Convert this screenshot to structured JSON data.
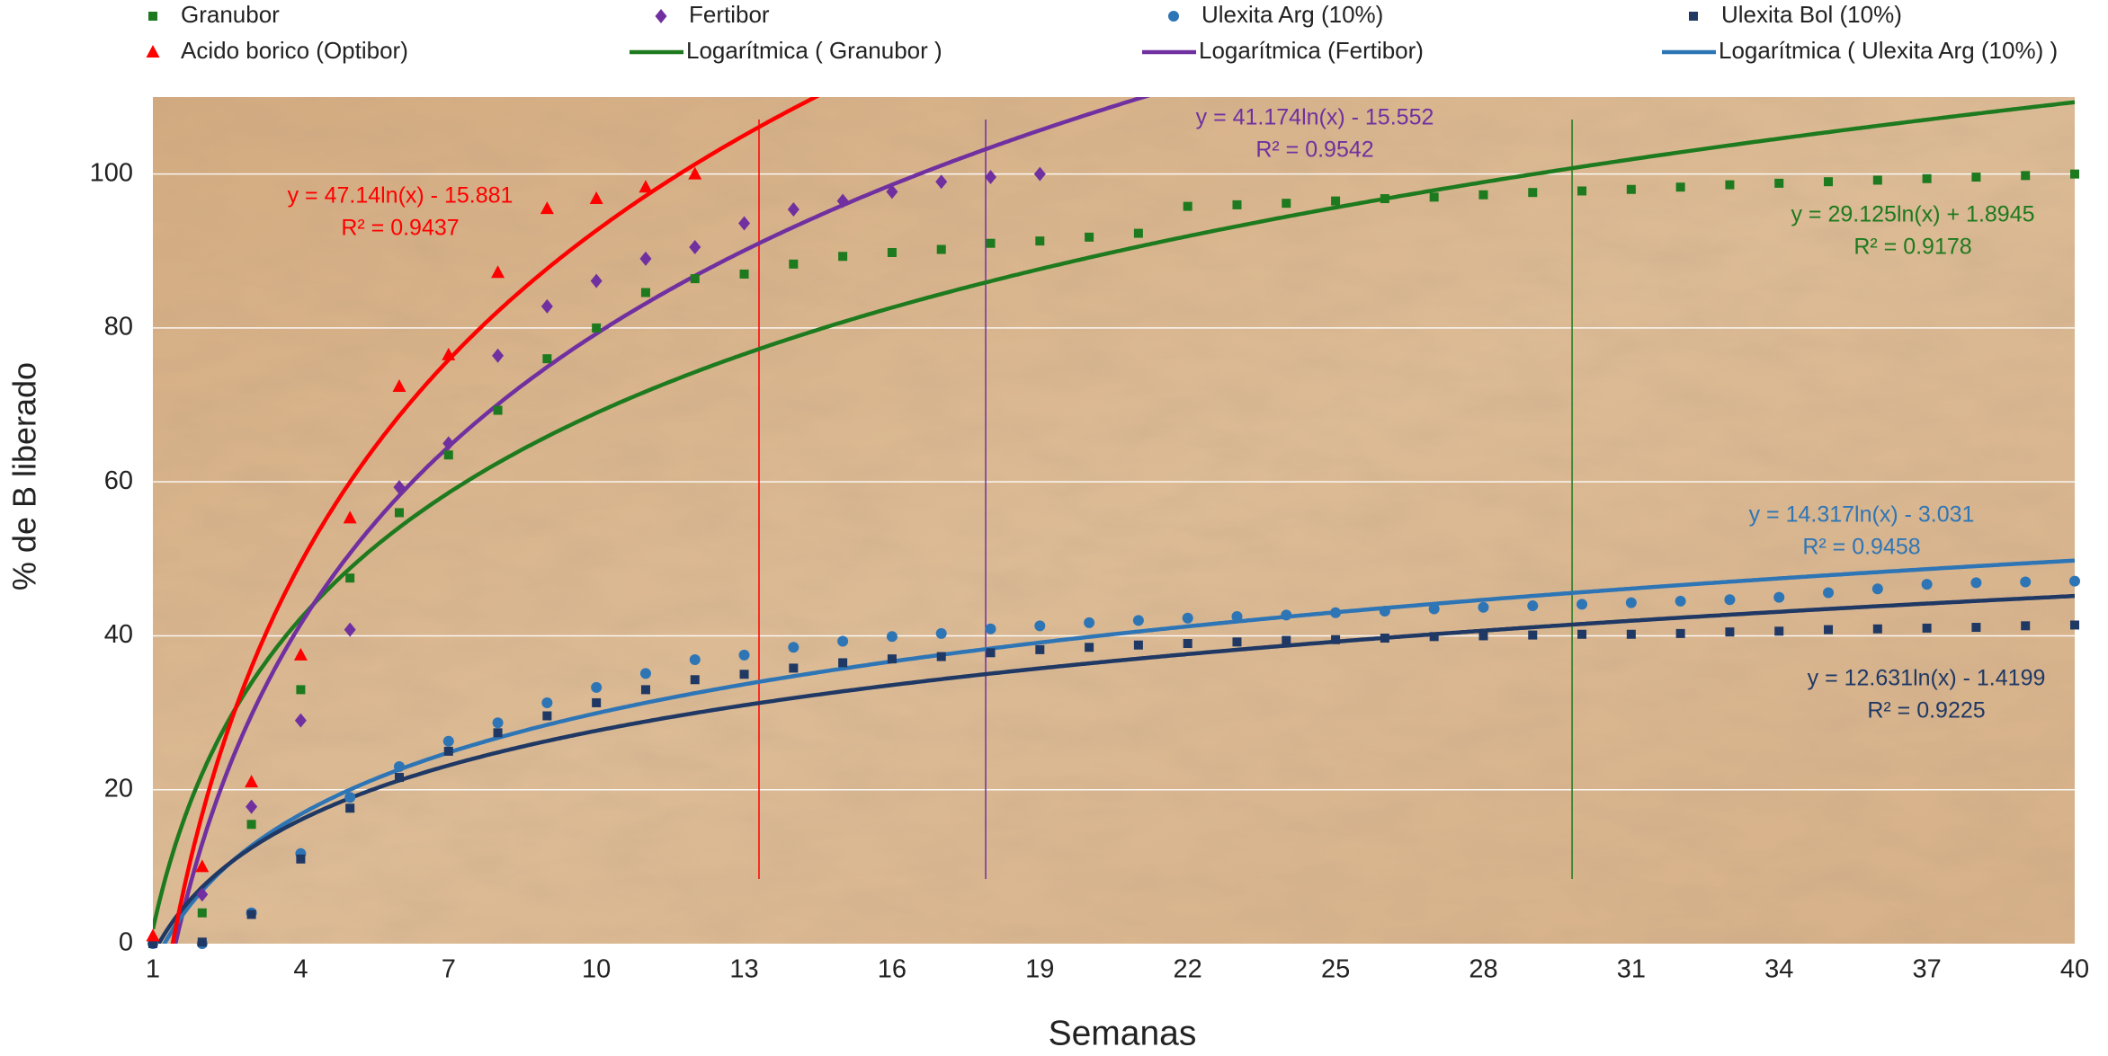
{
  "chart_data": {
    "type": "scatter",
    "x_label": "Semanas",
    "y_label": "% de B liberado",
    "xlim": [
      1,
      40
    ],
    "xticks": [
      1,
      4,
      7,
      10,
      13,
      16,
      19,
      22,
      25,
      28,
      31,
      34,
      37,
      40
    ],
    "ylim": [
      0,
      110
    ],
    "yticks": [
      0,
      20,
      40,
      60,
      80,
      100
    ],
    "grid": true,
    "series": [
      {
        "name": "Granubor",
        "color": "#1e7a1e",
        "marker": "square",
        "x": [
          1,
          2,
          3,
          4,
          5,
          6,
          7,
          8,
          9,
          10,
          11,
          12,
          13,
          14,
          15,
          16,
          17,
          18,
          19,
          20,
          21,
          22,
          23,
          24,
          25,
          26,
          27,
          28,
          29,
          30,
          31,
          32,
          33,
          34,
          35,
          36,
          37,
          38,
          39,
          40
        ],
        "values": [
          0,
          4,
          15.5,
          33,
          47.5,
          56,
          63.5,
          69.3,
          76,
          80,
          84.6,
          86.4,
          87,
          88.3,
          89.3,
          89.8,
          90.2,
          91,
          91.3,
          91.8,
          92.3,
          95.8,
          96,
          96.2,
          96.5,
          96.8,
          97,
          97.3,
          97.6,
          97.8,
          98,
          98.3,
          98.6,
          98.8,
          99,
          99.2,
          99.4,
          99.6,
          99.8,
          100
        ],
        "trendline": {
          "name": "Logarítmica ( Granubor )",
          "color": "#1e7a1e",
          "coef": [
            29.125,
            1.8945
          ],
          "equation": "y = 29.125ln(x) + 1.8945",
          "r2": "R² = 0.9178"
        }
      },
      {
        "name": "Fertibor",
        "color": "#7030a0",
        "marker": "diamond",
        "x": [
          1,
          2,
          3,
          4,
          5,
          6,
          7,
          8,
          9,
          10,
          11,
          12,
          13,
          14,
          15,
          16,
          17,
          18,
          19
        ],
        "values": [
          0.5,
          6.4,
          17.8,
          29,
          40.8,
          59.3,
          65,
          76.4,
          82.8,
          86.1,
          89,
          90.5,
          93.6,
          95.4,
          96.5,
          97.7,
          99,
          99.6,
          100
        ],
        "trendline": {
          "name": "Logarítmica (Fertibor)",
          "color": "#7030a0",
          "coef": [
            41.174,
            -15.552
          ],
          "equation": "y = 41.174ln(x) - 15.552",
          "r2": "R² = 0.9542"
        }
      },
      {
        "name": "Ulexita Arg (10%)",
        "color": "#2e75b6",
        "marker": "circle",
        "x": [
          1,
          2,
          3,
          4,
          5,
          6,
          7,
          8,
          9,
          10,
          11,
          12,
          13,
          14,
          15,
          16,
          17,
          18,
          19,
          20,
          21,
          22,
          23,
          24,
          25,
          26,
          27,
          28,
          29,
          30,
          31,
          32,
          33,
          34,
          35,
          36,
          37,
          38,
          39,
          40
        ],
        "values": [
          0,
          0,
          4,
          11.7,
          19,
          23,
          26.3,
          28.7,
          31.3,
          33.3,
          35.1,
          36.9,
          37.5,
          38.5,
          39.3,
          39.9,
          40.3,
          40.9,
          41.3,
          41.7,
          42,
          42.3,
          42.5,
          42.7,
          43,
          43.2,
          43.5,
          43.7,
          43.9,
          44.1,
          44.3,
          44.5,
          44.7,
          45,
          45.6,
          46.1,
          46.7,
          46.9,
          47,
          47.1
        ],
        "trendline": {
          "name": "Logarítmica ( Ulexita Arg (10%) )",
          "color": "#2e75b6",
          "coef": [
            14.317,
            -3.031
          ],
          "equation": "y = 14.317ln(x) - 3.031",
          "r2": "R² = 0.9458"
        }
      },
      {
        "name": "Ulexita Bol (10%)",
        "color": "#1f3864",
        "marker": "square",
        "x": [
          1,
          2,
          3,
          4,
          5,
          6,
          7,
          8,
          9,
          10,
          11,
          12,
          13,
          14,
          15,
          16,
          17,
          18,
          19,
          20,
          21,
          22,
          23,
          24,
          25,
          26,
          27,
          28,
          29,
          30,
          31,
          32,
          33,
          34,
          35,
          36,
          37,
          38,
          39,
          40
        ],
        "values": [
          0,
          0.2,
          3.8,
          11,
          17.6,
          21.6,
          25,
          27.4,
          29.6,
          31.3,
          33,
          34.3,
          35,
          35.8,
          36.5,
          37,
          37.3,
          37.8,
          38.2,
          38.5,
          38.8,
          39,
          39.2,
          39.4,
          39.5,
          39.7,
          39.9,
          40,
          40.1,
          40.2,
          40.2,
          40.3,
          40.5,
          40.6,
          40.8,
          40.9,
          41,
          41.1,
          41.3,
          41.4
        ],
        "trendline": {
          "color": "#1f3864",
          "coef": [
            12.631,
            -1.4199
          ],
          "equation": "y = 12.631ln(x) - 1.4199",
          "r2": "R² = 0.9225"
        }
      },
      {
        "name": "Acido borico (Optibor)",
        "color": "#ff0000",
        "marker": "triangle",
        "x": [
          1,
          2,
          3,
          4,
          5,
          6,
          7,
          8,
          9,
          10,
          11,
          12
        ],
        "values": [
          1,
          10,
          21,
          37.5,
          55.3,
          72.4,
          76.5,
          87.2,
          95.5,
          96.8,
          98.3,
          100
        ],
        "trendline": {
          "color": "#ff0000",
          "coef": [
            47.14,
            -15.881
          ],
          "equation": "y = 47.14ln(x) - 15.881",
          "r2": "R² = 0.9437"
        }
      }
    ],
    "vlines": [
      {
        "x": 13.3,
        "color": "#ff0000"
      },
      {
        "x": 17.9,
        "color": "#7030a0"
      },
      {
        "x": 29.8,
        "color": "#1e7a1e"
      }
    ]
  }
}
